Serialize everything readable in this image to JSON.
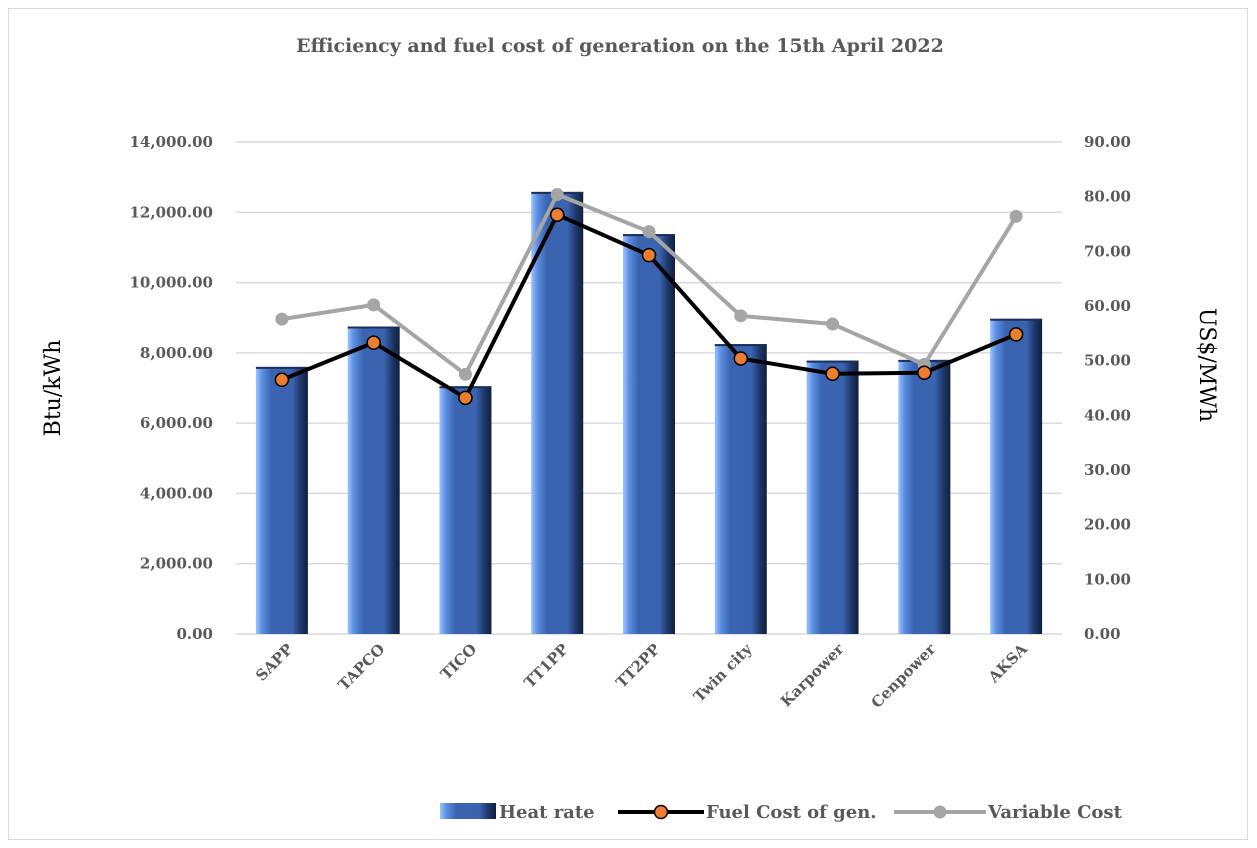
{
  "chart_data": {
    "type": "bar",
    "title": "Efficiency and fuel cost of generation on the 15th April 2022",
    "categories": [
      "SAPP",
      "TAPCO",
      "TICO",
      "TT1PP",
      "TT2PP",
      "Twin city",
      "Karpower",
      "Cenpower",
      "AKSA"
    ],
    "series": [
      {
        "name": "Heat rate",
        "type": "bar",
        "axis": "left",
        "color": "#3a63b0",
        "values": [
          7600,
          8750,
          7050,
          12580,
          11380,
          8250,
          7780,
          7800,
          8970
        ]
      },
      {
        "name": "Fuel Cost of gen.",
        "type": "line",
        "axis": "right",
        "color": "#000000",
        "marker_color": "#ed7d31",
        "values": [
          46.5,
          53.3,
          43.2,
          76.7,
          69.3,
          50.4,
          47.6,
          47.8,
          54.8
        ]
      },
      {
        "name": "Variable Cost",
        "type": "line",
        "axis": "right",
        "color": "#a5a5a5",
        "values": [
          57.6,
          60.2,
          47.5,
          80.4,
          73.6,
          58.2,
          56.7,
          49.3,
          76.4
        ]
      }
    ],
    "y_left": {
      "label": "Btu/kWh",
      "range": [
        0,
        14000
      ],
      "ticks": [
        "0.00",
        "2,000.00",
        "4,000.00",
        "6,000.00",
        "8,000.00",
        "10,000.00",
        "12,000.00",
        "14,000.00"
      ]
    },
    "y_right": {
      "label": "US$/MWh",
      "range": [
        0,
        90
      ],
      "ticks": [
        "0.00",
        "10.00",
        "20.00",
        "30.00",
        "40.00",
        "50.00",
        "60.00",
        "70.00",
        "80.00",
        "90.00"
      ]
    },
    "grid": true,
    "legend_position": "bottom"
  }
}
